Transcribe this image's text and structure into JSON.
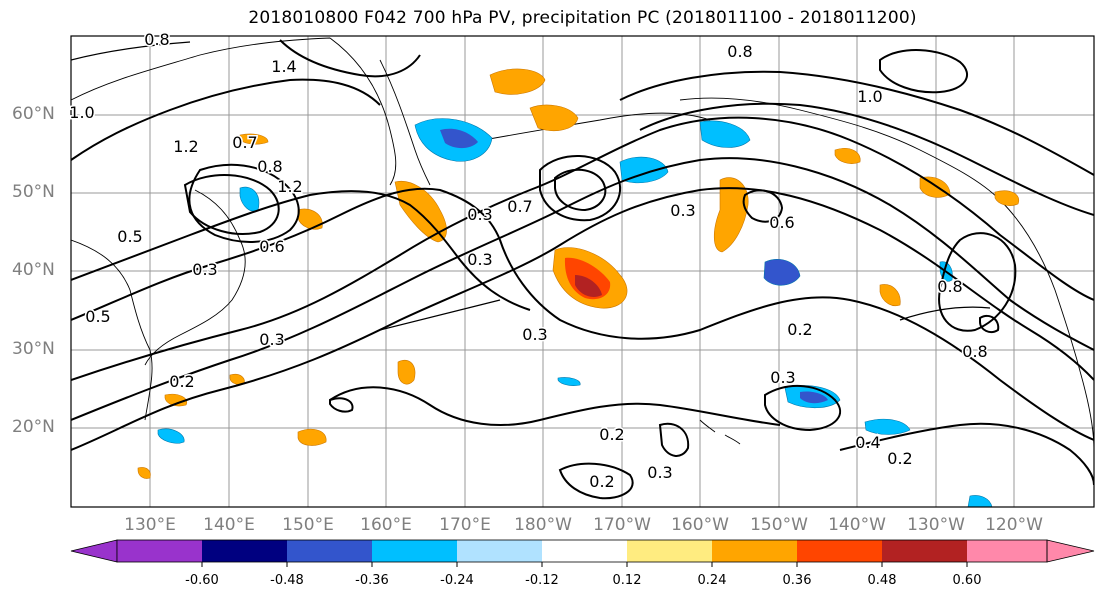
{
  "title": "2018010800 F042 700 hPa PV, precipitation PC (2018011100 - 2018011200)",
  "lat_labels": [
    "60°N",
    "50°N",
    "40°N",
    "30°N",
    "20°N"
  ],
  "lon_labels": [
    "130°E",
    "140°E",
    "150°E",
    "160°E",
    "170°E",
    "180°W",
    "170°W",
    "160°W",
    "150°W",
    "140°W",
    "130°W",
    "120°W"
  ],
  "contour_labels": [
    "0.8",
    "1.4",
    "1.0",
    "1.2",
    "0.7",
    "0.8",
    "1.2",
    "0.5",
    "0.3",
    "0.6",
    "0.5",
    "0.3",
    "0.2",
    "0.3",
    "0.7",
    "0.3",
    "0.3",
    "0.3",
    "0.6",
    "0.2",
    "0.3",
    "0.4",
    "0.2",
    "0.2",
    "0.3",
    "0.8",
    "1.0",
    "0.8",
    "0.2",
    "0.8"
  ],
  "colorbar": {
    "colors": [
      "#9933cc",
      "#000080",
      "#3355cc",
      "#00bfff",
      "#b0e2ff",
      "#ffffff",
      "#ffec80",
      "#ffa500",
      "#ff4500",
      "#b22222",
      "#ff88aa"
    ],
    "tick_labels": [
      "-0.60",
      "-0.48",
      "-0.36",
      "-0.24",
      "-0.12",
      "0.12",
      "0.24",
      "0.36",
      "0.48",
      "0.60"
    ]
  }
}
